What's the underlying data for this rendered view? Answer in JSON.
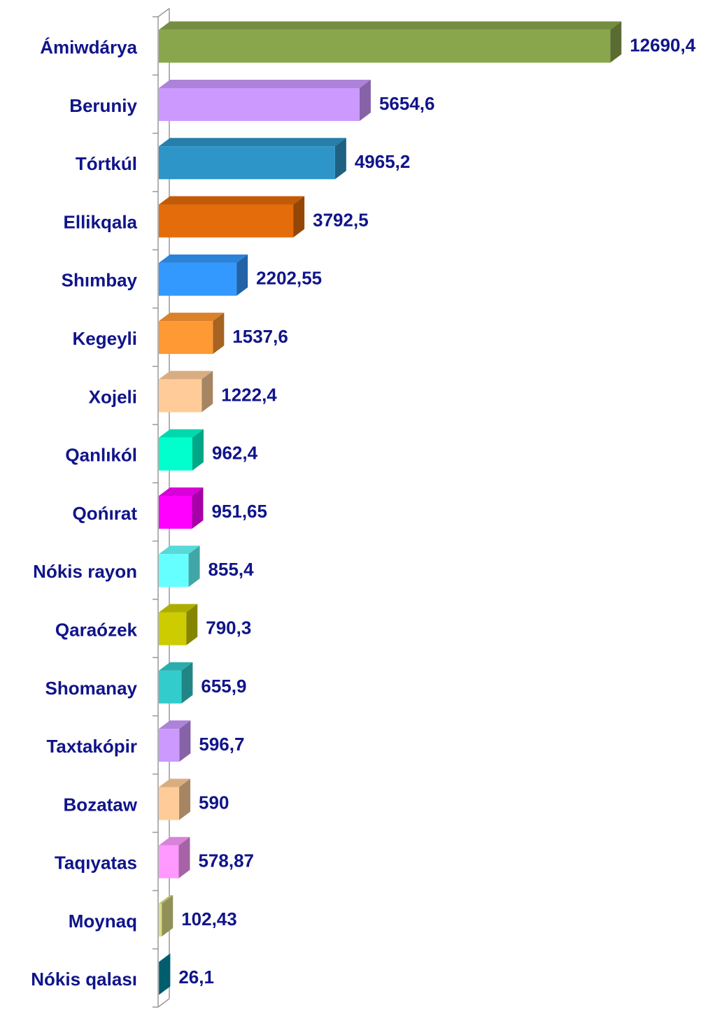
{
  "chart_data": {
    "type": "bar3d",
    "categories": [
      "Ámiwdárya",
      "Beruniy",
      "Tórtkúl",
      "Ellikqala",
      "Shımbay",
      "Kegeyli",
      "Xojeli",
      "Qanlıkól",
      "Qońırat",
      "Nókis rayon",
      "Qaraózek",
      "Shomanay",
      "Taxtakópir",
      "Bozataw",
      "Taqıyatas",
      "Moynaq",
      "Nókis qalası"
    ],
    "values": [
      12690.4,
      5654.6,
      4965.2,
      3792.5,
      2202.55,
      1537.6,
      1222.4,
      962.4,
      951.65,
      855.4,
      790.3,
      655.9,
      596.7,
      590,
      578.87,
      102.43,
      26.1
    ],
    "value_labels": [
      "12690,4",
      "5654,6",
      "4965,2",
      "3792,5",
      "2202,55",
      "1537,6",
      "1222,4",
      "962,4",
      "951,65",
      "855,4",
      "790,3",
      "655,9",
      "596,7",
      "590",
      "578,87",
      "102,43",
      "26,1"
    ],
    "colors": [
      "#8aa64c",
      "#cc99ff",
      "#2e95c9",
      "#e46c0a",
      "#3399ff",
      "#ff9933",
      "#ffcc99",
      "#00ffcc",
      "#ff00ff",
      "#66ffff",
      "#cccc00",
      "#33cccc",
      "#cc99ff",
      "#ffcc99",
      "#ff99ff",
      "#dddd88",
      "#008fa8"
    ],
    "xlim": [
      0,
      13000
    ]
  }
}
